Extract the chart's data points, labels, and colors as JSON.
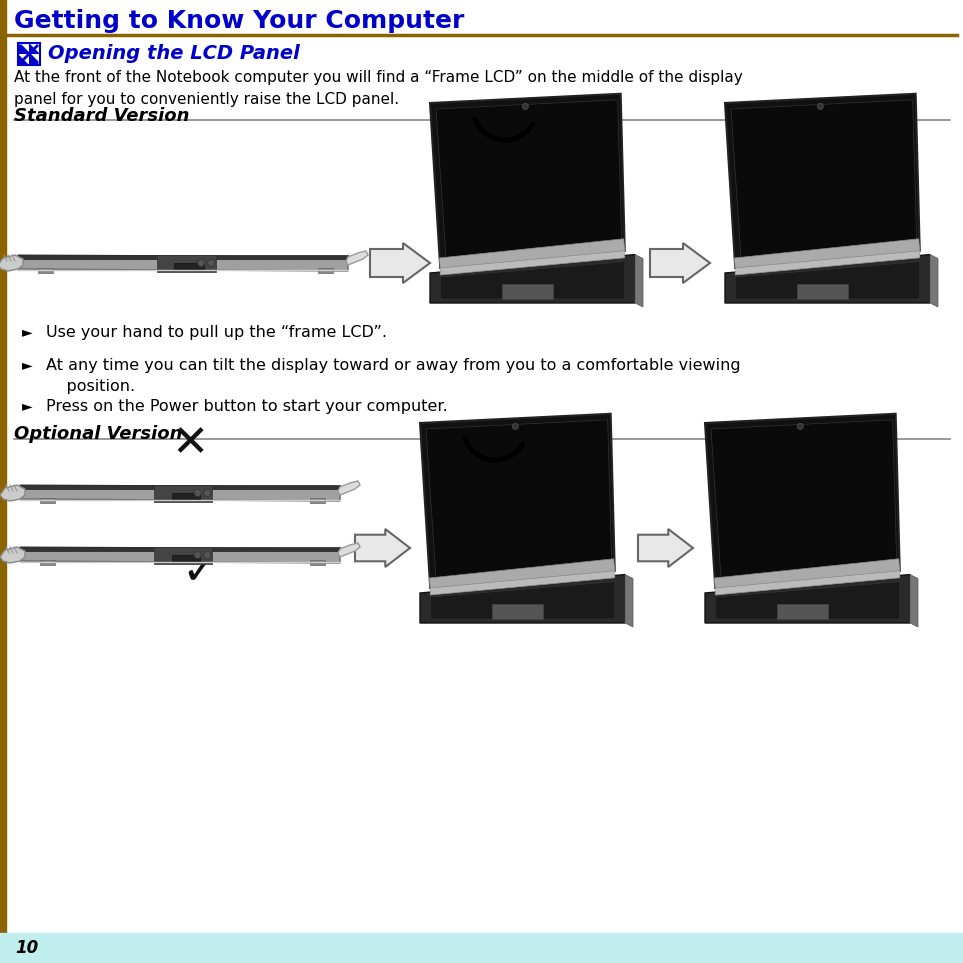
{
  "title": "Getting to Know Your Computer",
  "title_color": "#0000CC",
  "title_bar_color": "#8B6400",
  "section_heading": "Opening the LCD Panel",
  "section_heading_color": "#0000CC",
  "body_text": "At the front of the Notebook computer you will find a “Frame LCD” on the middle of the display\npanel for you to conveniently raise the LCD panel.",
  "standard_version_label": "Standard Version",
  "bullet1": "Use your hand to pull up the “frame LCD”.",
  "bullet2": "At any time you can tilt the display toward or away from you to a comfortable viewing\n    position.",
  "bullet3": "Press on the Power button to start your computer.",
  "optional_version_label": "Optional Version",
  "page_number": "10",
  "page_footer_bg": "#C0EEEE",
  "background_color": "#FFFFFF",
  "divider_color": "#888888",
  "left_bar_color": "#8B6400",
  "text_color": "#000000"
}
